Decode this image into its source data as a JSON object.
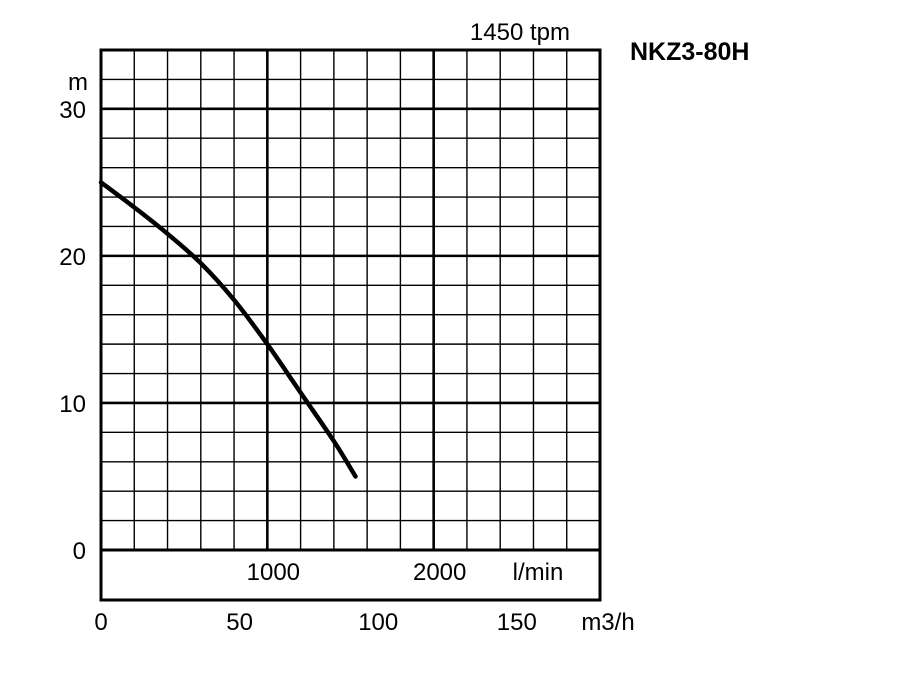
{
  "model": "NKZ3-80H",
  "chart_data": {
    "type": "line",
    "speed_label": "1450 tpm",
    "ylabel": "m",
    "ylim": [
      0,
      34
    ],
    "yticks": [
      0,
      10,
      20,
      30
    ],
    "x_units": [
      {
        "label": "l/min",
        "ticks": [
          1000,
          2000
        ],
        "lim": [
          0,
          3000
        ]
      },
      {
        "label": "m3/h",
        "ticks": [
          0,
          50,
          100,
          150
        ],
        "lim": [
          0,
          180
        ]
      }
    ],
    "grid": true,
    "series": [
      {
        "x": [
          0,
          200,
          400,
          600,
          800,
          1000,
          1200,
          1400,
          1530
        ],
        "y": [
          25,
          23.3,
          21.5,
          19.5,
          17,
          14,
          10.7,
          7.4,
          5
        ]
      }
    ]
  }
}
